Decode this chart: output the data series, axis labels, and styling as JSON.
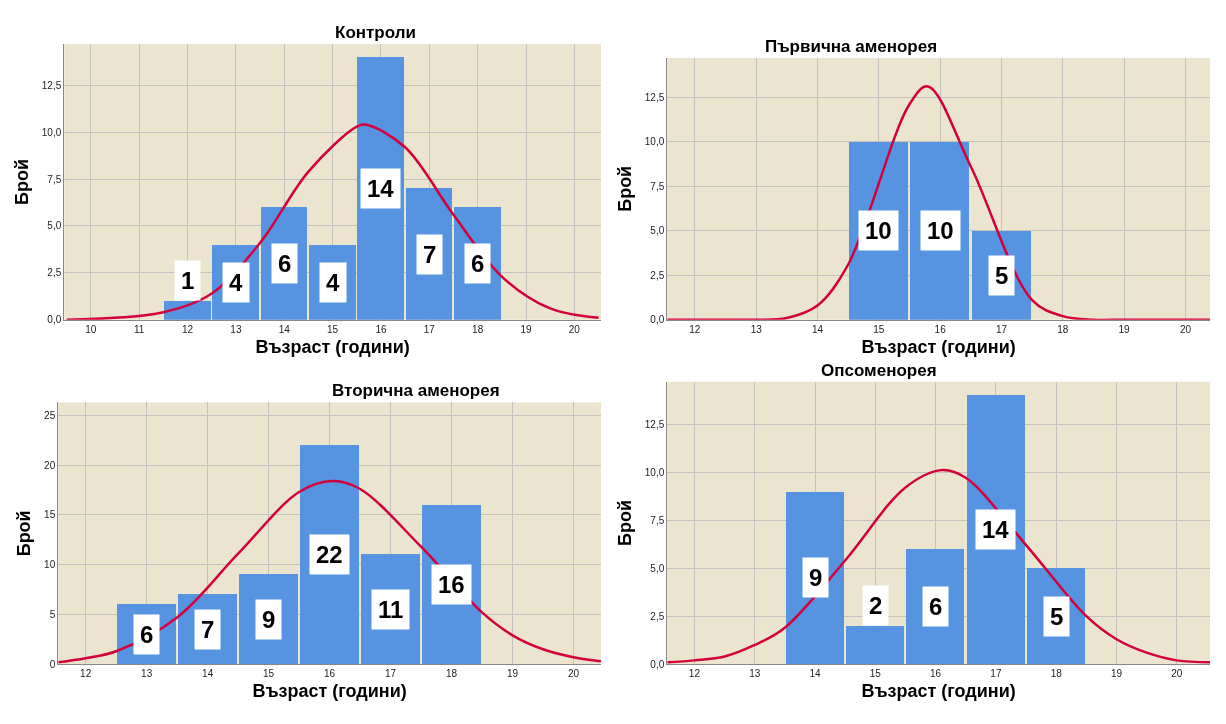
{
  "chart_data": [
    {
      "type": "histogram",
      "title": "Контроли",
      "xlabel": "Възраст (години)",
      "ylabel": "Брой",
      "bins": [
        11.5,
        12.5,
        13.5,
        14.5,
        15.5,
        16.5,
        17.5,
        18.5
      ],
      "values": [
        1,
        4,
        6,
        4,
        14,
        7,
        6
      ],
      "value_labels": [
        "1",
        "4",
        "6",
        "4",
        "14",
        "7",
        "6"
      ],
      "color": "#5694e1",
      "grid": true,
      "xlim": [
        9.45,
        20.55
      ],
      "xticks": [
        10,
        11,
        12,
        13,
        14,
        15,
        16,
        17,
        18,
        19,
        20
      ],
      "ylim": [
        0,
        14.7
      ],
      "yticks": [
        {
          "value": 0,
          "label": "0,0"
        },
        {
          "value": 2.5,
          "label": "2,5"
        },
        {
          "value": 5,
          "label": "5,0"
        },
        {
          "value": 7.5,
          "label": "7,5"
        },
        {
          "value": 10,
          "label": "10,0"
        },
        {
          "value": 12.5,
          "label": "12,5"
        }
      ],
      "series": [
        {
          "type": "line",
          "color": "#d3003b",
          "x": [
            9.5,
            10.5,
            11.5,
            12.5,
            13.5,
            14.5,
            15.5,
            15.7,
            16.5,
            17.5,
            18.5,
            19.5,
            20.5
          ],
          "values": [
            0.0,
            0.1,
            0.4,
            1.4,
            4.1,
            7.9,
            10.3,
            10.4,
            9.2,
            5.6,
            2.3,
            0.6,
            0.1
          ]
        }
      ]
    },
    {
      "type": "histogram",
      "title": "Първична аменорея",
      "xlabel": "Възраст (години)",
      "ylabel": "Брой",
      "bins": [
        14.5,
        15.5,
        16.5,
        17.5
      ],
      "values": [
        10,
        10,
        5
      ],
      "value_labels": [
        "10",
        "10",
        "5"
      ],
      "color": "#5694e1",
      "grid": true,
      "xlim": [
        11.55,
        20.4
      ],
      "xticks": [
        12,
        13,
        14,
        15,
        16,
        17,
        18,
        19,
        20
      ],
      "ylim": [
        0,
        14.7
      ],
      "yticks": [
        {
          "value": 0,
          "label": "0,0"
        },
        {
          "value": 2.5,
          "label": "2,5"
        },
        {
          "value": 5,
          "label": "5,0"
        },
        {
          "value": 7.5,
          "label": "7,5"
        },
        {
          "value": 10,
          "label": "10,0"
        },
        {
          "value": 12.5,
          "label": "12,5"
        }
      ],
      "series": [
        {
          "type": "line",
          "color": "#d3003b",
          "x": [
            11.55,
            12.5,
            13,
            13.5,
            14,
            14.5,
            15.5,
            15.8,
            16.5,
            17.5,
            18,
            18.5,
            19,
            20.4
          ],
          "values": [
            0.0,
            0.0,
            0.0,
            0.1,
            0.8,
            3.1,
            12.1,
            13.1,
            8.6,
            1.1,
            0.2,
            0.0,
            0.0,
            0.0
          ]
        }
      ]
    },
    {
      "type": "histogram",
      "title": "Вторична аменорея",
      "xlabel": "Възраст (години)",
      "ylabel": "Брой",
      "bins": [
        12.5,
        13.5,
        14.5,
        15.5,
        16.5,
        17.5,
        18.5
      ],
      "values": [
        6,
        7,
        9,
        22,
        11,
        16
      ],
      "value_labels": [
        "6",
        "7",
        "9",
        "22",
        "11",
        "16"
      ],
      "color": "#5694e1",
      "grid": true,
      "xlim": [
        11.55,
        20.45
      ],
      "xticks": [
        12,
        13,
        14,
        15,
        16,
        17,
        18,
        19,
        20
      ],
      "ylim": [
        0,
        26.3
      ],
      "yticks": [
        0,
        5,
        10,
        15,
        20,
        25
      ],
      "series": [
        {
          "type": "line",
          "color": "#d3003b",
          "x": [
            11.55,
            12,
            12.5,
            13.5,
            14.5,
            15.5,
            16.05,
            16.5,
            17.5,
            18.5,
            19,
            19.5,
            20,
            20.45
          ],
          "values": [
            0.2,
            0.6,
            1.3,
            4.7,
            11.1,
            17.3,
            18.4,
            17.6,
            11.8,
            5.2,
            2.9,
            1.5,
            0.7,
            0.3
          ]
        }
      ]
    },
    {
      "type": "histogram",
      "title": "Опсоменорея",
      "xlabel": "Възраст (години)",
      "ylabel": "Брой",
      "bins": [
        13.5,
        14.5,
        15.5,
        16.5,
        17.5,
        18.5
      ],
      "values": [
        9,
        2,
        6,
        14,
        5
      ],
      "value_labels": [
        "9",
        "2",
        "6",
        "14",
        "5"
      ],
      "color": "#5694e1",
      "grid": true,
      "xlim": [
        11.55,
        20.55
      ],
      "xticks": [
        12,
        13,
        14,
        15,
        16,
        17,
        18,
        19,
        20
      ],
      "ylim": [
        0,
        14.7
      ],
      "yticks": [
        {
          "value": 0,
          "label": "0,0"
        },
        {
          "value": 2.5,
          "label": "2,5"
        },
        {
          "value": 5,
          "label": "5,0"
        },
        {
          "value": 7.5,
          "label": "7,5"
        },
        {
          "value": 10,
          "label": "10,0"
        },
        {
          "value": 12.5,
          "label": "12,5"
        }
      ],
      "series": [
        {
          "type": "line",
          "color": "#d3003b",
          "x": [
            11.55,
            12,
            12.5,
            13,
            13.5,
            14.5,
            15.5,
            16.1,
            16.5,
            17.5,
            18.5,
            19,
            19.5,
            20,
            20.55
          ],
          "values": [
            0.1,
            0.2,
            0.4,
            1.0,
            1.9,
            5.4,
            9.2,
            10.1,
            9.7,
            6.2,
            2.5,
            1.3,
            0.6,
            0.2,
            0.1
          ]
        }
      ]
    }
  ]
}
